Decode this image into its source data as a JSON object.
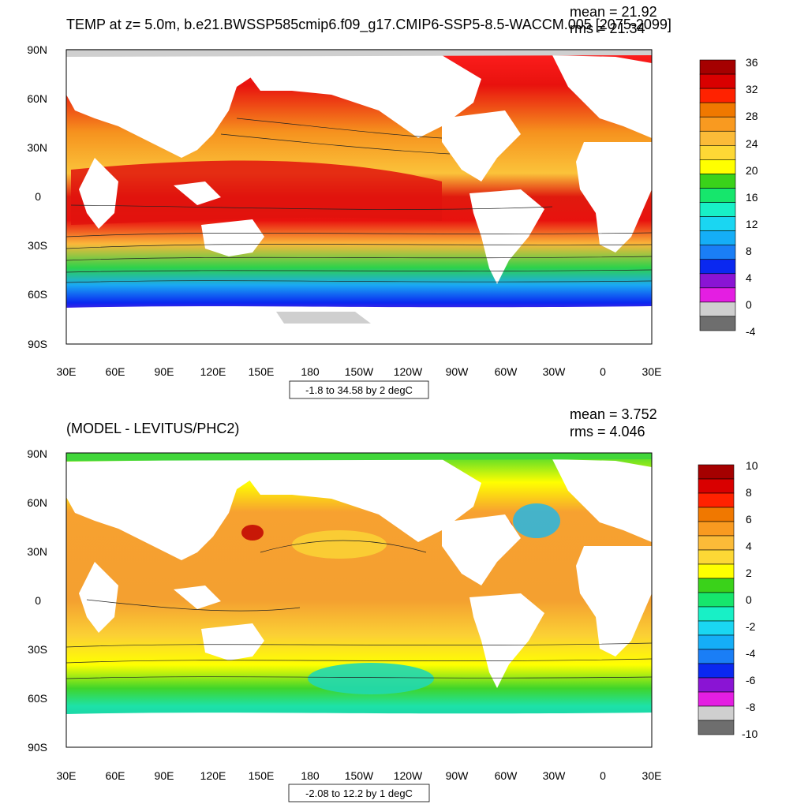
{
  "panels": [
    {
      "title": "TEMP at z=   5.0m, b.e21.BWSSP585cmip6.f09_g17.CMIP6-SSP5-8.5-WACCM.005 [2075-2099]",
      "mean_label": "mean = 21.92",
      "rms_label": "rms = 21.34",
      "footnote": "-1.8 to 34.58 by 2 degC",
      "lat_labels": [
        "90N",
        "60N",
        "30N",
        "0",
        "30S",
        "60S",
        "90S"
      ],
      "lon_labels": [
        "30E",
        "60E",
        "90E",
        "120E",
        "150E",
        "180",
        "150W",
        "120W",
        "90W",
        "60W",
        "30W",
        "0",
        "30E"
      ],
      "colorbar_labels": [
        "36",
        "32",
        "28",
        "24",
        "20",
        "16",
        "12",
        "8",
        "4",
        "0",
        "-4"
      ],
      "colorbar_colors": [
        "#a50000",
        "#d90000",
        "#ff2200",
        "#f07800",
        "#f99a20",
        "#fbbb38",
        "#fdd835",
        "#ffff00",
        "#3ad21a",
        "#16e66c",
        "#18f0c6",
        "#1ad6f2",
        "#15aef7",
        "#1a7ef6",
        "#0a28f0",
        "#8a14d4",
        "#e41ee2",
        "#cfcfcf",
        "#6e6e6e"
      ]
    },
    {
      "title": "(MODEL - LEVITUS/PHC2)",
      "mean_label": "mean = 3.752",
      "rms_label": "rms = 4.046",
      "footnote": "-2.08 to 12.2 by 1 degC",
      "lat_labels": [
        "90N",
        "60N",
        "30N",
        "0",
        "30S",
        "60S",
        "90S"
      ],
      "lon_labels": [
        "30E",
        "60E",
        "90E",
        "120E",
        "150E",
        "180",
        "150W",
        "120W",
        "90W",
        "60W",
        "30W",
        "0",
        "30E"
      ],
      "colorbar_labels": [
        "10",
        "8",
        "6",
        "4",
        "2",
        "0",
        "-2",
        "-4",
        "-6",
        "-8",
        "-10"
      ],
      "colorbar_colors": [
        "#a50000",
        "#d90000",
        "#ff2200",
        "#f07800",
        "#f99a20",
        "#fbbb38",
        "#fdd835",
        "#ffff00",
        "#3ad21a",
        "#16e66c",
        "#18f0c6",
        "#1ad6f2",
        "#15aef7",
        "#1a7ef6",
        "#0a28f0",
        "#8a14d4",
        "#e41ee2",
        "#cfcfcf",
        "#6e6e6e"
      ]
    }
  ]
}
